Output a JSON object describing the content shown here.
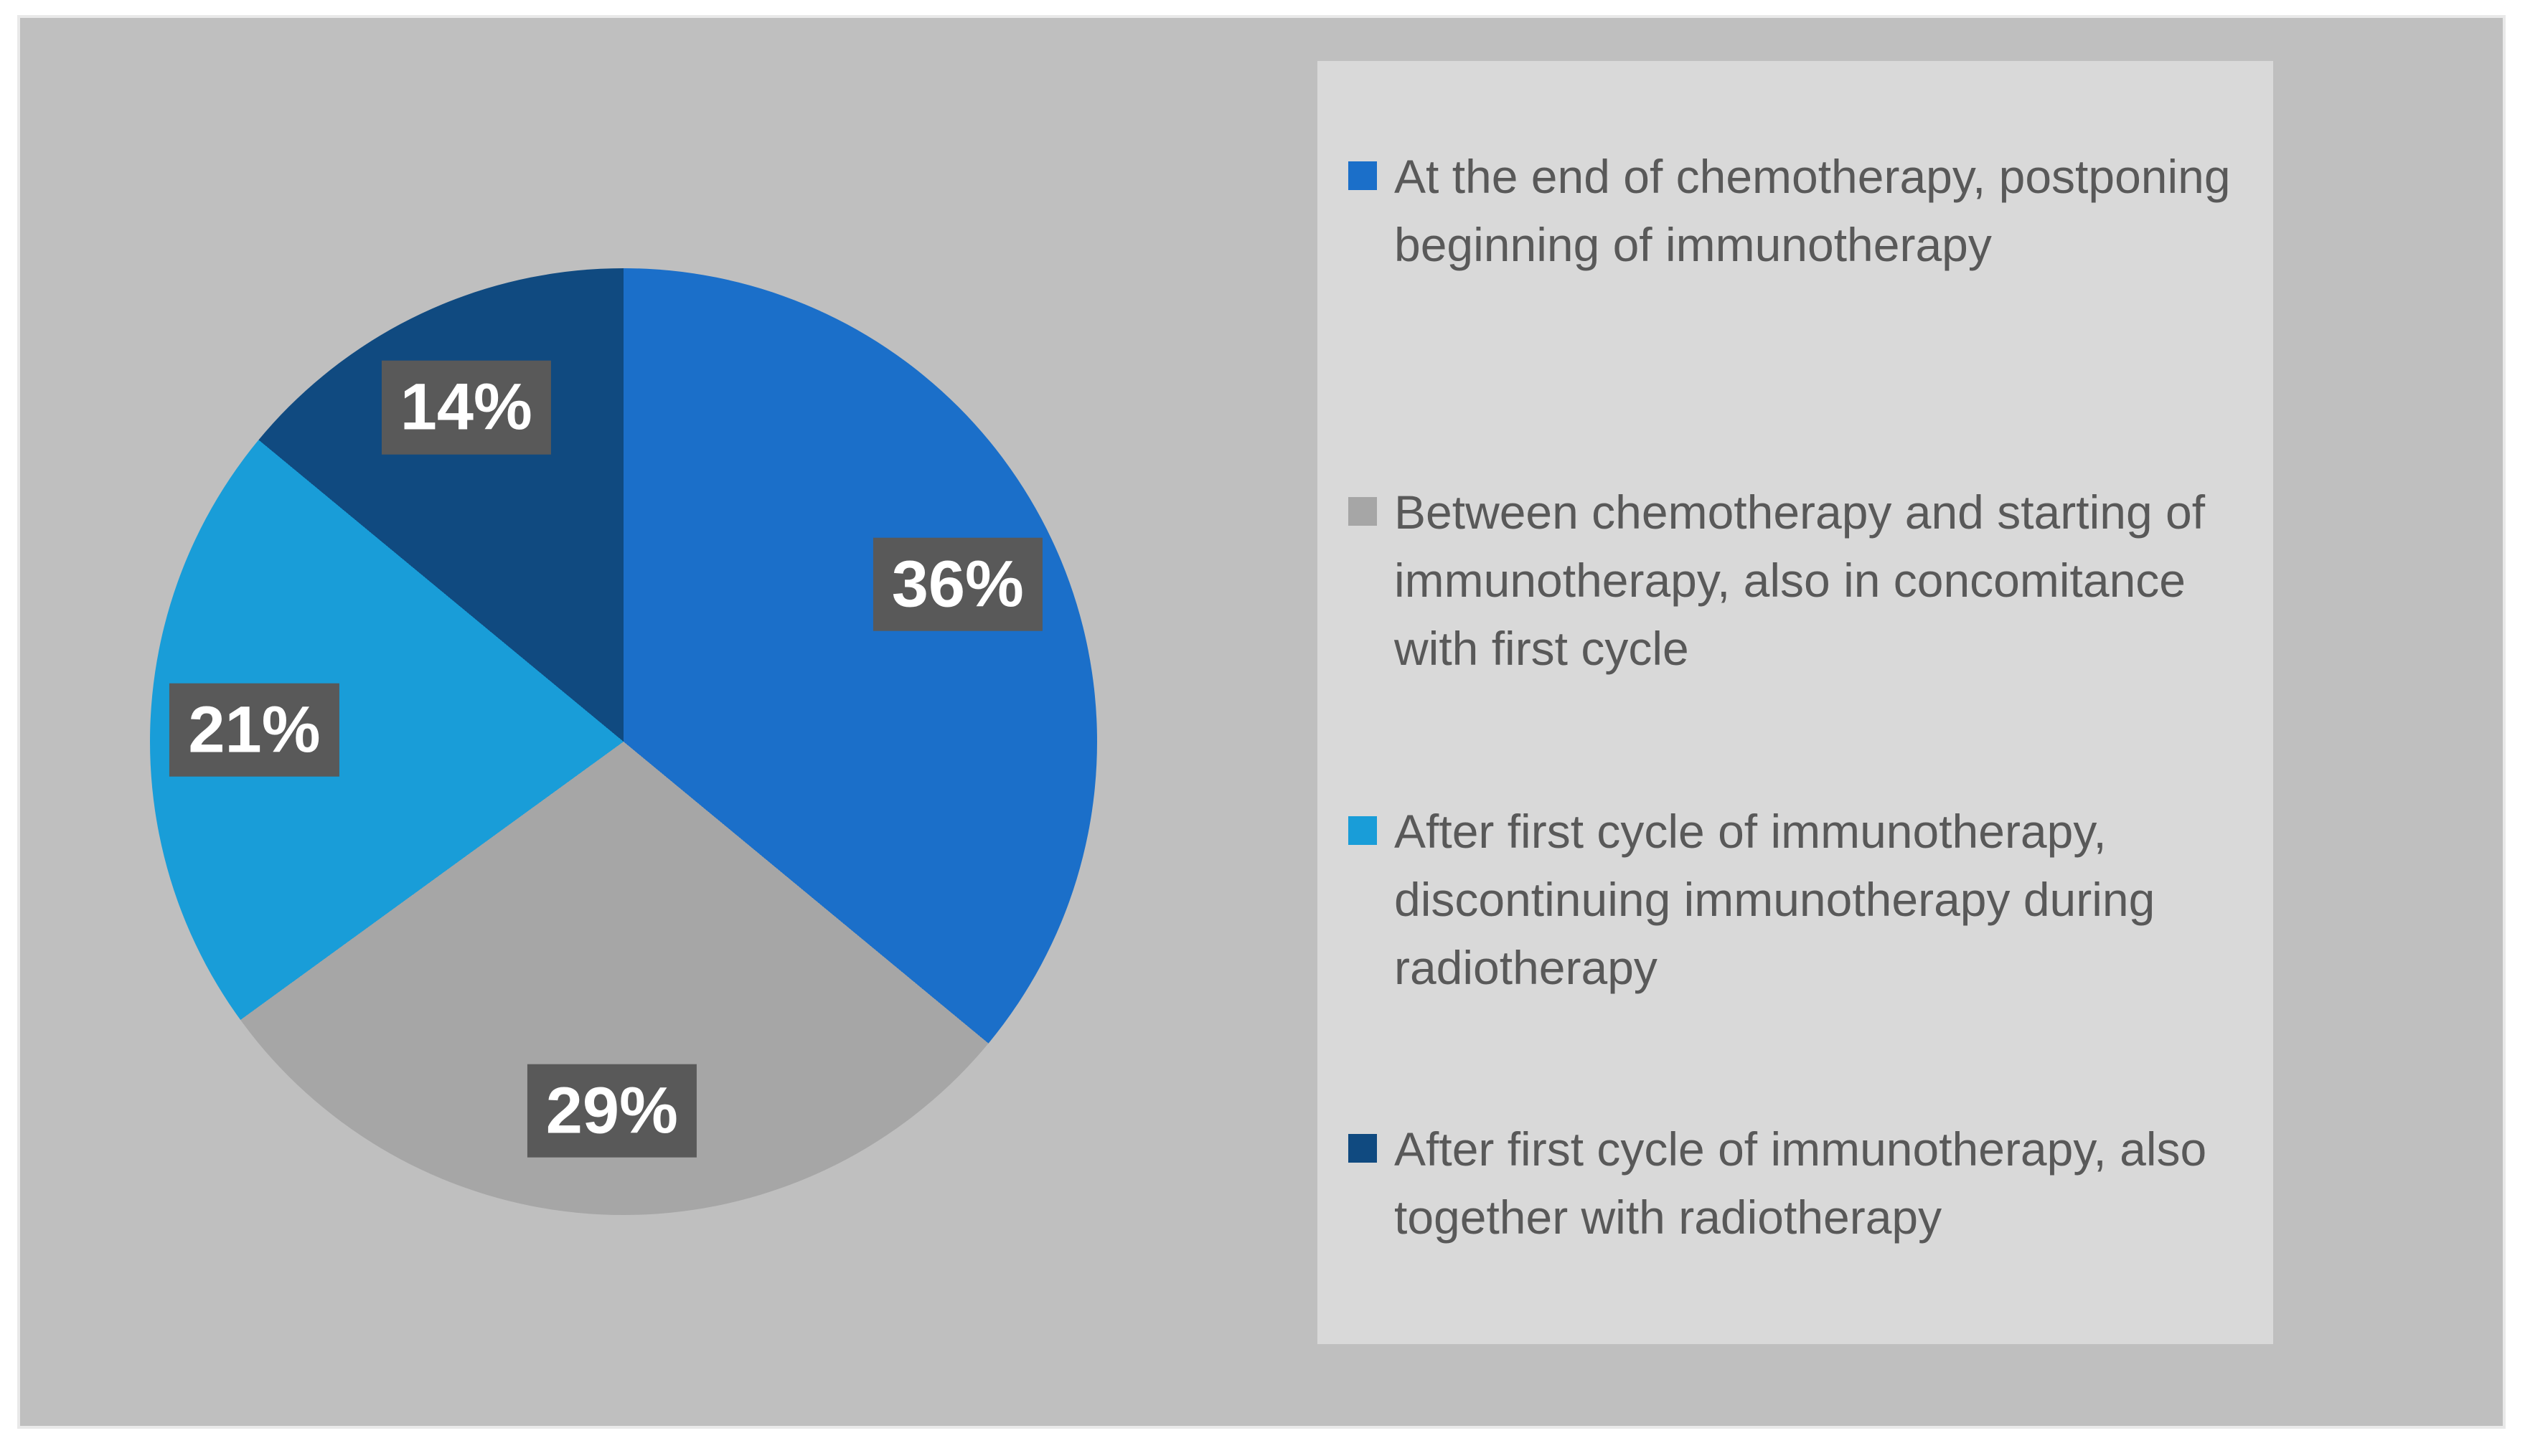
{
  "chart_data": {
    "type": "pie",
    "title": "",
    "start_angle_deg": 0,
    "direction": "clockwise",
    "legend_position": "right",
    "data_label_style": {
      "background": "#595959",
      "text_color": "#FFFFFF"
    },
    "slices": [
      {
        "label": "At the end of chemotherapy, postponing\nbeginning of immunotherapy",
        "value": 36,
        "display": "36%",
        "color": "#1B6FC9"
      },
      {
        "label": "Between chemotherapy and starting of\nimmunotherapy, also in concomitance\nwith first cycle",
        "value": 29,
        "display": "29%",
        "color": "#A6A6A6"
      },
      {
        "label": "After first cycle of immunotherapy,\ndiscontinuing immunotherapy during\nradiotherapy",
        "value": 21,
        "display": "21%",
        "color": "#199DD8"
      },
      {
        "label": "After first cycle of immunotherapy, also\ntogether with radiotherapy",
        "value": 14,
        "display": "14%",
        "color": "#104A80"
      }
    ]
  },
  "colors": {
    "page_background": "#FFFFFF",
    "chart_panel_background": "#BFBFBF",
    "legend_panel_background": "#D9D9D9",
    "legend_text": "#595959",
    "data_label_background": "#595959",
    "data_label_text": "#FFFFFF"
  }
}
